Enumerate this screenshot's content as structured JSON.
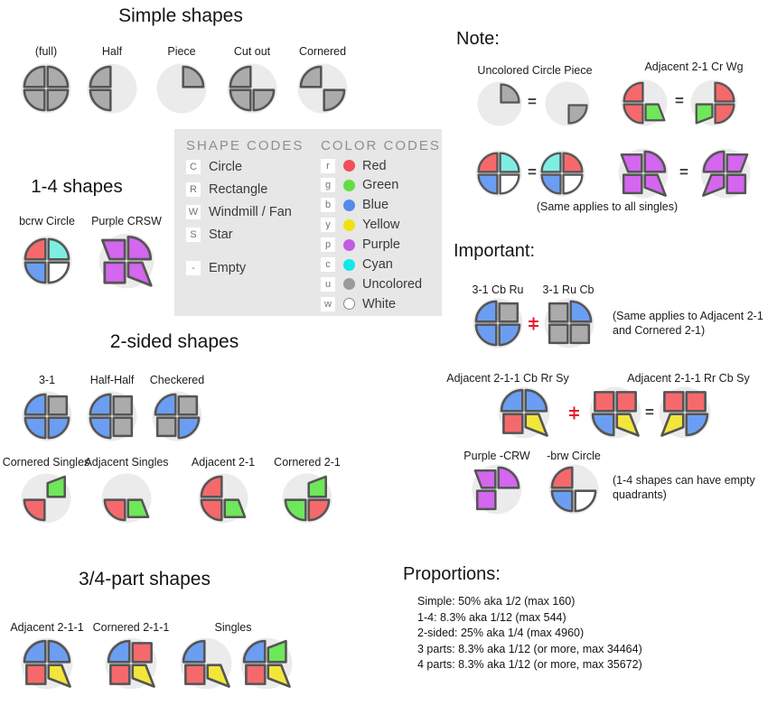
{
  "colors": {
    "outline": "#555555",
    "figure_bg": "#ebebeb",
    "legend_bg": "#e7e7e7",
    "neq_red": "#e11a2c",
    "shape_fills": {
      "r": "#f5696c",
      "g": "#6fe75a",
      "b": "#6b9ef2",
      "y": "#f3e63b",
      "p": "#d466ef",
      "c": "#7feee2",
      "u": "#ababab",
      "w": "#ffffff"
    }
  },
  "symbols": {
    "equals": "="
  },
  "sections": {
    "simple": {
      "title": "Simple shapes",
      "items": [
        {
          "label": "(full)"
        },
        {
          "label": "Half"
        },
        {
          "label": "Piece"
        },
        {
          "label": "Cut out"
        },
        {
          "label": "Cornered"
        }
      ]
    },
    "legend": {
      "shape_codes": {
        "title": "SHAPE CODES",
        "items": [
          {
            "code": "C",
            "label": "Circle"
          },
          {
            "code": "R",
            "label": "Rectangle"
          },
          {
            "code": "W",
            "label": "Windmill / Fan"
          },
          {
            "code": "S",
            "label": "Star"
          }
        ],
        "empty": {
          "code": "-",
          "label": "Empty"
        }
      },
      "color_codes": {
        "title": "COLOR CODES",
        "items": [
          {
            "code": "r",
            "label": "Red",
            "color": "#ef4e5a"
          },
          {
            "code": "g",
            "label": "Green",
            "color": "#62dd43"
          },
          {
            "code": "b",
            "label": "Blue",
            "color": "#5589ea"
          },
          {
            "code": "y",
            "label": "Yellow",
            "color": "#efe211"
          },
          {
            "code": "p",
            "label": "Purple",
            "color": "#c25ce4"
          },
          {
            "code": "c",
            "label": "Cyan",
            "color": "#0fe9e9"
          },
          {
            "code": "u",
            "label": "Uncolored",
            "color": "#9b9b9b"
          },
          {
            "code": "w",
            "label": "White",
            "color": "#ffffff"
          }
        ]
      }
    },
    "one_four": {
      "title": "1-4 shapes",
      "items": [
        {
          "label": "bcrw Circle"
        },
        {
          "label": "Purple CRSW"
        }
      ]
    },
    "two_sided": {
      "title": "2-sided shapes",
      "row1": [
        {
          "label": "3-1"
        },
        {
          "label": "Half-Half"
        },
        {
          "label": "Checkered"
        }
      ],
      "row2": [
        {
          "label": "Cornered Singles"
        },
        {
          "label": "Adjacent Singles"
        },
        {
          "label": "Adjacent 2-1"
        },
        {
          "label": "Cornered 2-1"
        }
      ]
    },
    "three_four": {
      "title": "3/4-part shapes",
      "items": [
        {
          "label": "Adjacent 2-1-1"
        },
        {
          "label": "Cornered 2-1-1"
        },
        {
          "label": "Singles"
        }
      ]
    },
    "note": {
      "title": "Note:",
      "pair1_label": "Uncolored Circle Piece",
      "pair2_label": "Adjacent 2-1 Cr Wg",
      "caption": "(Same applies to all singles)"
    },
    "important": {
      "title": "Important:",
      "row1": {
        "left_label": "3-1 Cb Ru",
        "right_label": "3-1 Ru Cb",
        "caption": "(Same applies to Adjacent 2-1 and Cornered 2-1)"
      },
      "row2": {
        "left_label": "Adjacent 2-1-1 Cb Rr Sy",
        "right_label": "Adjacent 2-1-1 Rr Cb Sy"
      },
      "row3": {
        "left_label": "Purple -CRW",
        "right_label": "-brw Circle",
        "caption": "(1-4 shapes can have empty quadrants)"
      }
    },
    "proportions": {
      "title": "Proportions:",
      "lines": [
        "Simple: 50% aka 1/2 (max 160)",
        "1-4: 8.3% aka 1/12 (max 544)",
        "2-sided: 25% aka 1/4 (max 4960)",
        "3 parts: 8.3% aka 1/12 (or more, max 34464)",
        "4 parts: 8.3% aka 1/12 (or more, max 35672)"
      ]
    }
  },
  "figures": {
    "full": {
      "quads": [
        [
          "tl",
          "C",
          "u"
        ],
        [
          "tr",
          "C",
          "u"
        ],
        [
          "bl",
          "C",
          "u"
        ],
        [
          "br",
          "C",
          "u"
        ]
      ]
    },
    "half": {
      "quads": [
        [
          "tl",
          "C",
          "u"
        ],
        [
          "bl",
          "C",
          "u"
        ]
      ]
    },
    "piece": {
      "quads": [
        [
          "tr",
          "C",
          "u"
        ]
      ]
    },
    "cutout": {
      "quads": [
        [
          "tl",
          "C",
          "u"
        ],
        [
          "bl",
          "C",
          "u"
        ],
        [
          "br",
          "C",
          "u"
        ]
      ]
    },
    "cornered": {
      "quads": [
        [
          "tl",
          "C",
          "u"
        ],
        [
          "br",
          "C",
          "u"
        ]
      ]
    },
    "bcrw": {
      "quads": [
        [
          "tl",
          "C",
          "r"
        ],
        [
          "tr",
          "C",
          "c"
        ],
        [
          "bl",
          "C",
          "b"
        ],
        [
          "br",
          "C",
          "w"
        ]
      ]
    },
    "crsw_purple": {
      "quads": [
        [
          "tl",
          "W",
          "p"
        ],
        [
          "tr",
          "C",
          "p"
        ],
        [
          "bl",
          "R",
          "p"
        ],
        [
          "br",
          "S",
          "p"
        ]
      ]
    },
    "three_one": {
      "quads": [
        [
          "tl",
          "C",
          "b"
        ],
        [
          "bl",
          "C",
          "b"
        ],
        [
          "br",
          "C",
          "b"
        ],
        [
          "tr",
          "R",
          "u"
        ]
      ]
    },
    "half_half": {
      "quads": [
        [
          "tl",
          "C",
          "b"
        ],
        [
          "bl",
          "C",
          "b"
        ],
        [
          "tr",
          "R",
          "u"
        ],
        [
          "br",
          "R",
          "u"
        ]
      ]
    },
    "checkered": {
      "quads": [
        [
          "tl",
          "C",
          "b"
        ],
        [
          "br",
          "C",
          "b"
        ],
        [
          "tr",
          "R",
          "u"
        ],
        [
          "bl",
          "R",
          "u"
        ]
      ]
    },
    "cornered_singles": {
      "quads": [
        [
          "bl",
          "C",
          "r"
        ],
        [
          "tr",
          "W",
          "g"
        ]
      ]
    },
    "adjacent_singles": {
      "quads": [
        [
          "bl",
          "C",
          "r"
        ],
        [
          "br",
          "W",
          "g"
        ]
      ]
    },
    "adjacent_21": {
      "quads": [
        [
          "tl",
          "C",
          "r"
        ],
        [
          "bl",
          "C",
          "r"
        ],
        [
          "br",
          "W",
          "g"
        ]
      ]
    },
    "cornered_21": {
      "quads": [
        [
          "tr",
          "W",
          "g"
        ],
        [
          "bl",
          "C",
          "g"
        ],
        [
          "br",
          "C",
          "r"
        ]
      ]
    },
    "adjacent_211": {
      "quads": [
        [
          "tl",
          "C",
          "b"
        ],
        [
          "tr",
          "C",
          "b"
        ],
        [
          "bl",
          "R",
          "r"
        ],
        [
          "br",
          "S",
          "y"
        ]
      ]
    },
    "cornered_211": {
      "quads": [
        [
          "tl",
          "C",
          "b"
        ],
        [
          "tr",
          "R",
          "r"
        ],
        [
          "bl",
          "R",
          "r"
        ],
        [
          "br",
          "S",
          "y"
        ]
      ]
    },
    "singles_three": {
      "quads": [
        [
          "tl",
          "C",
          "b"
        ],
        [
          "bl",
          "R",
          "r"
        ],
        [
          "br",
          "S",
          "y"
        ]
      ]
    },
    "singles_four": {
      "quads": [
        [
          "tl",
          "C",
          "b"
        ],
        [
          "tr",
          "W",
          "g"
        ],
        [
          "bl",
          "R",
          "r"
        ],
        [
          "br",
          "S",
          "y"
        ]
      ]
    },
    "piece_rotated": {
      "quads": [
        [
          "br",
          "C",
          "u"
        ]
      ]
    },
    "adjacent_21_m": {
      "quads": [
        [
          "tr",
          "C",
          "r"
        ],
        [
          "br",
          "C",
          "r"
        ],
        [
          "bl",
          "W",
          "g"
        ]
      ]
    },
    "bcrw_m": {
      "quads": [
        [
          "tl",
          "C",
          "c"
        ],
        [
          "tr",
          "C",
          "r"
        ],
        [
          "bl",
          "C",
          "b"
        ],
        [
          "br",
          "C",
          "w"
        ]
      ]
    },
    "crsw_m": {
      "quads": [
        [
          "tl",
          "W",
          "p"
        ],
        [
          "tr",
          "C",
          "p"
        ],
        [
          "bl",
          "R",
          "p"
        ],
        [
          "br",
          "S",
          "p"
        ]
      ],
      "mirror": true
    },
    "three_one_rucb": {
      "quads": [
        [
          "tr",
          "C",
          "b"
        ],
        [
          "tl",
          "R",
          "u"
        ],
        [
          "bl",
          "R",
          "u"
        ],
        [
          "br",
          "R",
          "u"
        ]
      ]
    },
    "adj211_rrcbsy": {
      "quads": [
        [
          "tl",
          "R",
          "r"
        ],
        [
          "tr",
          "R",
          "r"
        ],
        [
          "bl",
          "C",
          "b"
        ],
        [
          "br",
          "S",
          "y"
        ]
      ]
    },
    "adj211_rrcbsy_r": {
      "quads": [
        [
          "tl",
          "R",
          "r"
        ],
        [
          "tr",
          "R",
          "r"
        ],
        [
          "bl",
          "S",
          "y"
        ],
        [
          "br",
          "C",
          "b"
        ]
      ]
    },
    "crw_purple": {
      "quads": [
        [
          "tl",
          "W",
          "p"
        ],
        [
          "tr",
          "C",
          "p"
        ],
        [
          "bl",
          "R",
          "p"
        ]
      ]
    },
    "brw_circle": {
      "quads": [
        [
          "tl",
          "C",
          "r"
        ],
        [
          "bl",
          "C",
          "b"
        ],
        [
          "br",
          "C",
          "w"
        ]
      ]
    }
  }
}
